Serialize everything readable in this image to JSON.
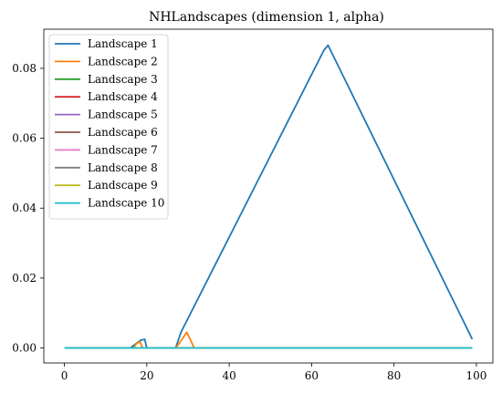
{
  "chart_data": {
    "type": "line",
    "title": "NHLandscapes (dimension 1, alpha)",
    "xlabel": "",
    "ylabel": "",
    "xlim": [
      -5,
      104
    ],
    "ylim": [
      -0.0043,
      0.0912
    ],
    "xticks": [
      0,
      20,
      40,
      60,
      80,
      100
    ],
    "yticks": [
      0.0,
      0.02,
      0.04,
      0.06,
      0.08
    ],
    "xtick_labels": [
      "0",
      "20",
      "40",
      "60",
      "80",
      "100"
    ],
    "ytick_labels": [
      "0.00",
      "0.02",
      "0.04",
      "0.06",
      "0.08"
    ],
    "grid": false,
    "legend_position": "upper-left",
    "series": [
      {
        "name": "Landscape 1",
        "color": "#1f77b4",
        "x": [
          0,
          16,
          18.5,
          19.5,
          20,
          27,
          28.3,
          63,
          64,
          99
        ],
        "y": [
          0,
          0,
          0.0022,
          0.0025,
          0,
          0,
          0.0045,
          0.0852,
          0.0866,
          0.0025
        ]
      },
      {
        "name": "Landscape 2",
        "color": "#ff7f0e",
        "x": [
          0,
          16.7,
          17.5,
          18.3,
          19,
          27,
          28,
          29.7,
          31.5,
          99
        ],
        "y": [
          0,
          0,
          0.0012,
          0.0018,
          0,
          0,
          0.0015,
          0.0045,
          0,
          0
        ]
      },
      {
        "name": "Landscape 3",
        "color": "#2ca02c",
        "x": [
          0,
          99
        ],
        "y": [
          0,
          0
        ]
      },
      {
        "name": "Landscape 4",
        "color": "#d62728",
        "x": [
          0,
          99
        ],
        "y": [
          0,
          0
        ]
      },
      {
        "name": "Landscape 5",
        "color": "#9467bd",
        "x": [
          0,
          99
        ],
        "y": [
          0,
          0
        ]
      },
      {
        "name": "Landscape 6",
        "color": "#8c564b",
        "x": [
          0,
          99
        ],
        "y": [
          0,
          0
        ]
      },
      {
        "name": "Landscape 7",
        "color": "#e377c2",
        "x": [
          0,
          99
        ],
        "y": [
          0,
          0
        ]
      },
      {
        "name": "Landscape 8",
        "color": "#7f7f7f",
        "x": [
          0,
          99
        ],
        "y": [
          0,
          0
        ]
      },
      {
        "name": "Landscape 9",
        "color": "#bcbd22",
        "x": [
          0,
          99
        ],
        "y": [
          0,
          0
        ]
      },
      {
        "name": "Landscape 10",
        "color": "#17becf",
        "x": [
          0,
          99
        ],
        "y": [
          0,
          0
        ]
      }
    ]
  }
}
